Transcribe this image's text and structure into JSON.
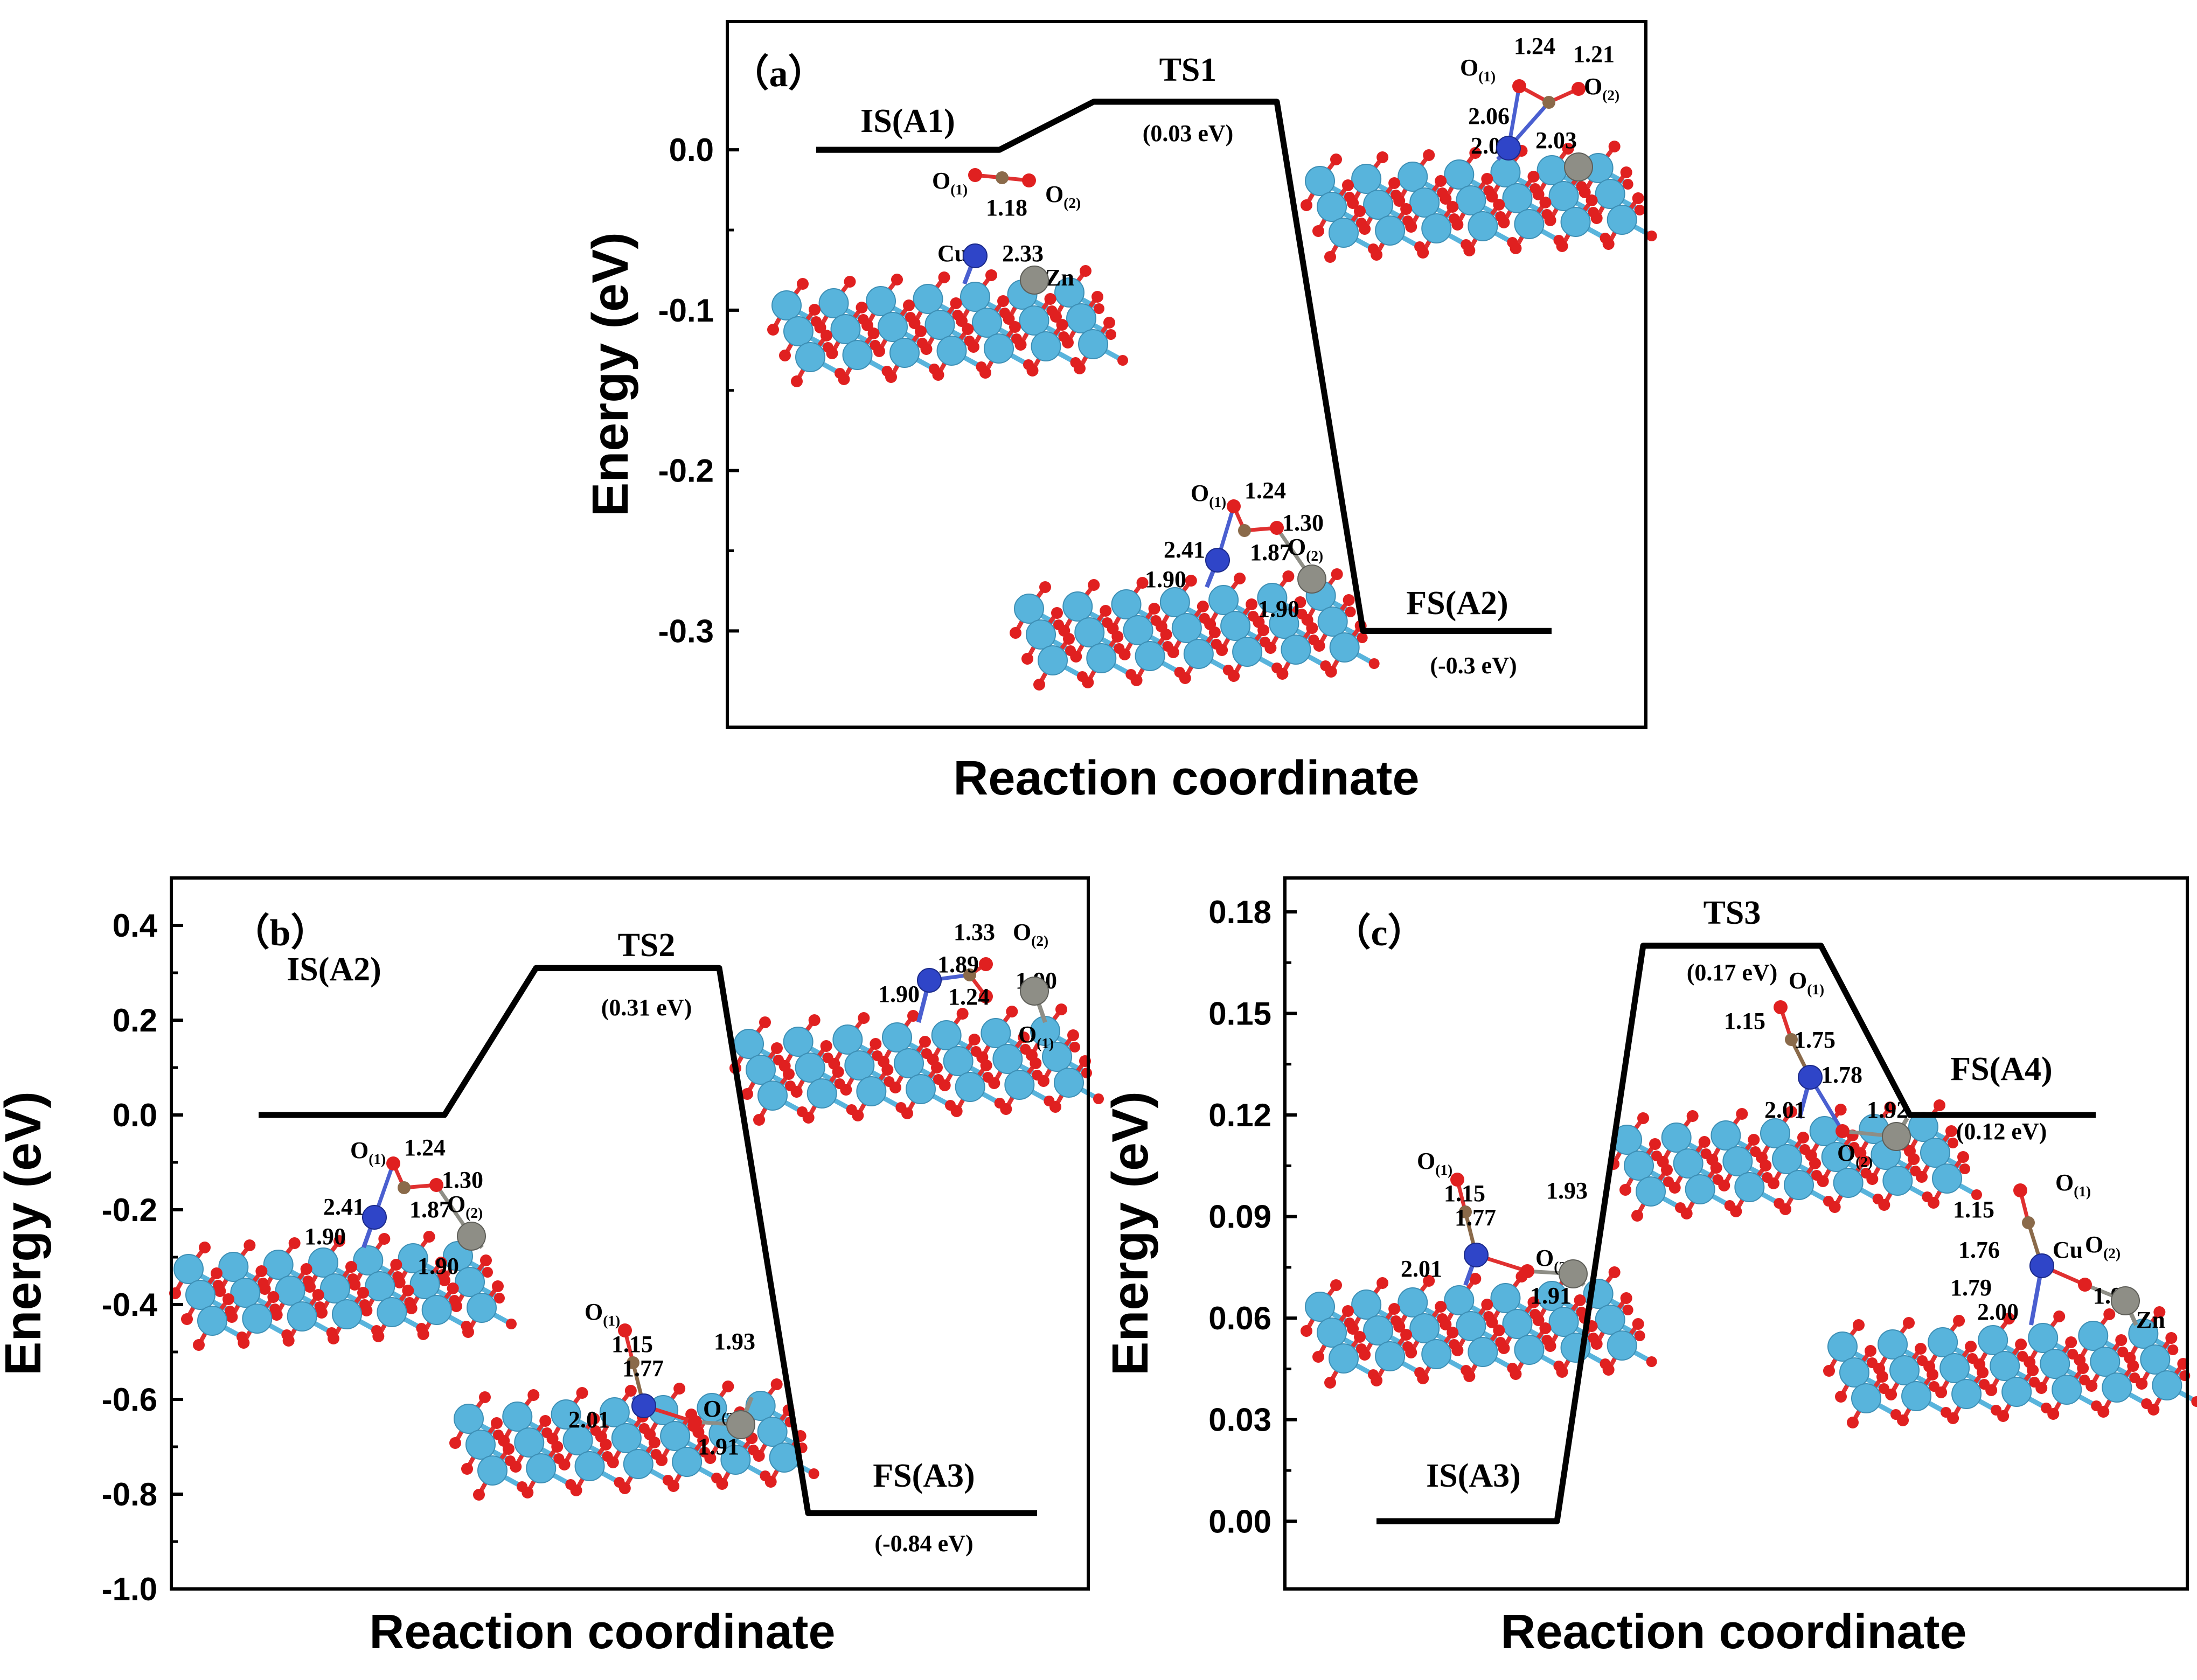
{
  "colors": {
    "axis": "#000000",
    "path": "#000000",
    "cu_atom": "#2f45c8",
    "zn_atom": "#8e8e86",
    "c_atom": "#8a6a4a",
    "o_atom": "#e02020",
    "lattice_cation": "#58b4dc",
    "bond_cu": "#4a5fd0",
    "bond_o": "#e03030"
  },
  "panels": [
    {
      "name": "a",
      "panel_label": "（a）",
      "xlabel": "Reaction coordinate",
      "ylabel": "Energy (eV)",
      "states": [
        {
          "name": "IS(A1)",
          "energy": 0.0,
          "energy_label": ""
        },
        {
          "name": "TS1",
          "energy": 0.03,
          "energy_label": "(0.03 eV)"
        },
        {
          "name": "FS(A2)",
          "energy": -0.3,
          "energy_label": "(-0.3 eV)"
        }
      ],
      "structures": [
        {
          "name": "is-a1-structure",
          "labels": [
            "O(1)",
            "O(2)",
            "1.18",
            "Cu",
            "2.33",
            "Zn"
          ]
        },
        {
          "name": "ts1-structure",
          "labels": [
            "O(1)",
            "1.24",
            "1.21",
            "O(2)",
            "2.06",
            "2.02",
            "2.03"
          ]
        },
        {
          "name": "fs-a2-structure",
          "labels": [
            "O(1)",
            "1.24",
            "1.30",
            "2.41",
            "1.87",
            "O(2)",
            "1.90",
            "1.90"
          ]
        }
      ]
    },
    {
      "name": "b",
      "panel_label": "（b）",
      "xlabel": "Reaction coordinate",
      "ylabel": "Energy (eV)",
      "states": [
        {
          "name": "IS(A2)",
          "energy": 0.0,
          "energy_label": ""
        },
        {
          "name": "TS2",
          "energy": 0.31,
          "energy_label": "(0.31 eV)"
        },
        {
          "name": "FS(A3)",
          "energy": -0.84,
          "energy_label": "(-0.84 eV)"
        }
      ],
      "structures": [
        {
          "name": "is-a2-structure",
          "labels": [
            "O(1)",
            "1.24",
            "1.30",
            "2.41",
            "1.87",
            "O(2)",
            "1.90",
            "1.90"
          ]
        },
        {
          "name": "ts2-structure",
          "labels": [
            "1.33",
            "O(2)",
            "1.89",
            "1.90",
            "1.90",
            "1.24",
            "O(1)"
          ]
        },
        {
          "name": "fs-a3-structure",
          "labels": [
            "O(1)",
            "1.15",
            "1.77",
            "1.93",
            "2.01",
            "O(2)",
            "1.91"
          ]
        }
      ]
    },
    {
      "name": "c",
      "panel_label": "（c）",
      "xlabel": "Reaction coordinate",
      "ylabel": "Energy (eV)",
      "states": [
        {
          "name": "IS(A3)",
          "energy": 0.0,
          "energy_label": ""
        },
        {
          "name": "TS3",
          "energy": 0.17,
          "energy_label": "(0.17 eV)"
        },
        {
          "name": "FS(A4)",
          "energy": 0.12,
          "energy_label": "(0.12 eV)"
        }
      ],
      "structures": [
        {
          "name": "is-a3-structure",
          "labels": [
            "O(1)",
            "1.15",
            "1.77",
            "1.93",
            "2.01",
            "O(2)",
            "1.91"
          ]
        },
        {
          "name": "ts3-structure",
          "labels": [
            "O(1)",
            "1.15",
            "1.75",
            "1.78",
            "1.92",
            "2.01",
            "O(2)"
          ]
        },
        {
          "name": "fs-a4-structure",
          "labels": [
            "O(1)",
            "1.15",
            "1.76",
            "Cu",
            "O(2)",
            "1.79",
            "2.00",
            "1.92",
            "Zn"
          ]
        }
      ]
    }
  ],
  "chart_data": [
    {
      "type": "line",
      "title": "",
      "panel": "(a)",
      "xlabel": "Reaction coordinate",
      "ylabel": "Energy (eV)",
      "ylim": [
        -0.36,
        0.08
      ],
      "yticks": [
        0.0,
        -0.1,
        -0.2,
        -0.3
      ],
      "ytick_labels": [
        "0.0",
        "-0.1",
        "-0.2",
        "-0.3"
      ],
      "categories": [
        "IS(A1)",
        "TS1",
        "FS(A2)"
      ],
      "values": [
        0.0,
        0.03,
        -0.3
      ],
      "grid": false,
      "legend": "none"
    },
    {
      "type": "line",
      "title": "",
      "panel": "(b)",
      "xlabel": "Reaction coordinate",
      "ylabel": "Energy (eV)",
      "ylim": [
        -1.0,
        0.5
      ],
      "yticks": [
        0.4,
        0.2,
        0.0,
        -0.2,
        -0.4,
        -0.6,
        -0.8,
        -1.0
      ],
      "ytick_labels": [
        "0.4",
        "0.2",
        "0.0",
        "-0.2",
        "-0.4",
        "-0.6",
        "-0.8",
        "-1.0"
      ],
      "categories": [
        "IS(A2)",
        "TS2",
        "FS(A3)"
      ],
      "values": [
        0.0,
        0.31,
        -0.84
      ],
      "grid": false,
      "legend": "none"
    },
    {
      "type": "line",
      "title": "",
      "panel": "(c)",
      "xlabel": "Reaction coordinate",
      "ylabel": "Energy (eV)",
      "ylim": [
        -0.02,
        0.19
      ],
      "yticks": [
        0.18,
        0.15,
        0.12,
        0.09,
        0.06,
        0.03,
        0.0
      ],
      "ytick_labels": [
        "0.18",
        "0.15",
        "0.12",
        "0.09",
        "0.06",
        "0.03",
        "0.00"
      ],
      "categories": [
        "IS(A3)",
        "TS3",
        "FS(A4)"
      ],
      "values": [
        0.0,
        0.17,
        0.12
      ],
      "grid": false,
      "legend": "none"
    }
  ]
}
